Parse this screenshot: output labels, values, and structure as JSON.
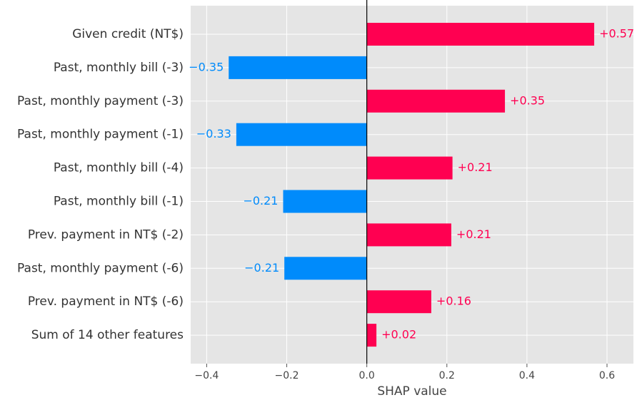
{
  "chart_data": {
    "type": "bar",
    "orientation": "horizontal",
    "xlabel": "SHAP value",
    "categories": [
      "Given credit (NT$)",
      "Past, monthly bill (-3)",
      "Past, monthly payment (-3)",
      "Past, monthly payment (-1)",
      "Past, monthly bill (-4)",
      "Past, monthly bill (-1)",
      "Prev. payment in NT$ (-2)",
      "Past, monthly payment (-6)",
      "Prev. payment in NT$ (-6)",
      "Sum of 14 other features"
    ],
    "values": [
      0.568,
      -0.345,
      0.345,
      -0.326,
      0.214,
      -0.209,
      0.211,
      -0.206,
      0.161,
      0.024
    ],
    "value_labels": [
      "+0.57",
      "−0.35",
      "+0.35",
      "−0.33",
      "+0.21",
      "−0.21",
      "+0.21",
      "−0.21",
      "+0.16",
      "+0.02"
    ],
    "positive_color": "#ff0051",
    "negative_color": "#008bfb",
    "xlim": [
      -0.44,
      0.666
    ],
    "xticks": [
      {
        "value": -0.4,
        "label": "−0.4"
      },
      {
        "value": -0.2,
        "label": "−0.2"
      },
      {
        "value": 0,
        "label": "0.0"
      },
      0.2,
      0.4,
      0.6
    ],
    "grid": true
  }
}
